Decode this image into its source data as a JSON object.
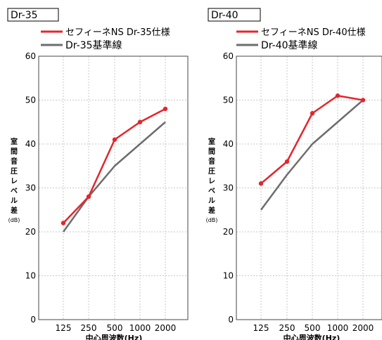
{
  "colors": {
    "primary_series": "#e3262c",
    "reference_series": "#6d6d6d",
    "grid": "#c9c9c9",
    "axis": "#444444"
  },
  "chart_data": [
    {
      "type": "line",
      "title": "Dr-35",
      "ylabel": "室間音圧レベル差(dB)",
      "xlabel": "中心周波数(Hz)",
      "categories": [
        "125",
        "250",
        "500",
        "1000",
        "2000"
      ],
      "ylim": [
        0,
        60
      ],
      "yticks": [
        0,
        10,
        20,
        30,
        40,
        50,
        60
      ],
      "grid": true,
      "legend_position": "top-left",
      "series": [
        {
          "name": "セフィーネNS Dr-35仕様",
          "values": [
            22,
            28,
            41,
            45,
            48
          ],
          "markers": true,
          "color": "#e3262c"
        },
        {
          "name": "Dr-35基準線",
          "values": [
            20,
            28,
            35,
            40,
            45
          ],
          "markers": false,
          "color": "#6d6d6d"
        }
      ]
    },
    {
      "type": "line",
      "title": "Dr-40",
      "ylabel": "室間音圧レベル差(dB)",
      "xlabel": "中心周波数(Hz)",
      "categories": [
        "125",
        "250",
        "500",
        "1000",
        "2000"
      ],
      "ylim": [
        0,
        60
      ],
      "yticks": [
        0,
        10,
        20,
        30,
        40,
        50,
        60
      ],
      "grid": true,
      "legend_position": "top-left",
      "series": [
        {
          "name": "セフィーネNS Dr-40仕様",
          "values": [
            31,
            36,
            47,
            51,
            50
          ],
          "markers": true,
          "color": "#e3262c"
        },
        {
          "name": "Dr-40基準線",
          "values": [
            25,
            33,
            40,
            45,
            50
          ],
          "markers": false,
          "color": "#6d6d6d"
        }
      ]
    }
  ]
}
